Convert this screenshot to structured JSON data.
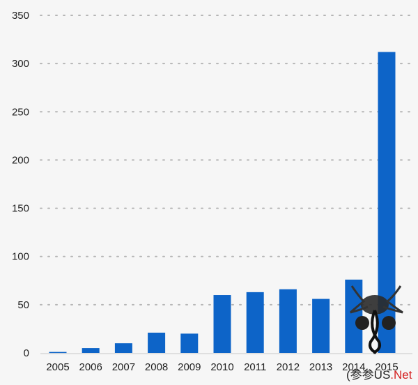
{
  "chart_data": {
    "type": "bar",
    "categories": [
      "2005",
      "2006",
      "2007",
      "2008",
      "2009",
      "2010",
      "2011",
      "2012",
      "2013",
      "2014",
      "2015"
    ],
    "values": [
      1,
      5,
      10,
      21,
      20,
      60,
      63,
      66,
      56,
      76,
      312
    ],
    "title": "",
    "xlabel": "",
    "ylabel": "",
    "ylim": [
      0,
      350
    ],
    "yticks": [
      0,
      50,
      100,
      150,
      200,
      250,
      300,
      350
    ],
    "grid": true,
    "legend": "none",
    "bar_color": "#0d64c8"
  },
  "watermark": {
    "text_main": "(参参US",
    "text_suffix": ".Net",
    "suffix_color": "#d42020"
  }
}
